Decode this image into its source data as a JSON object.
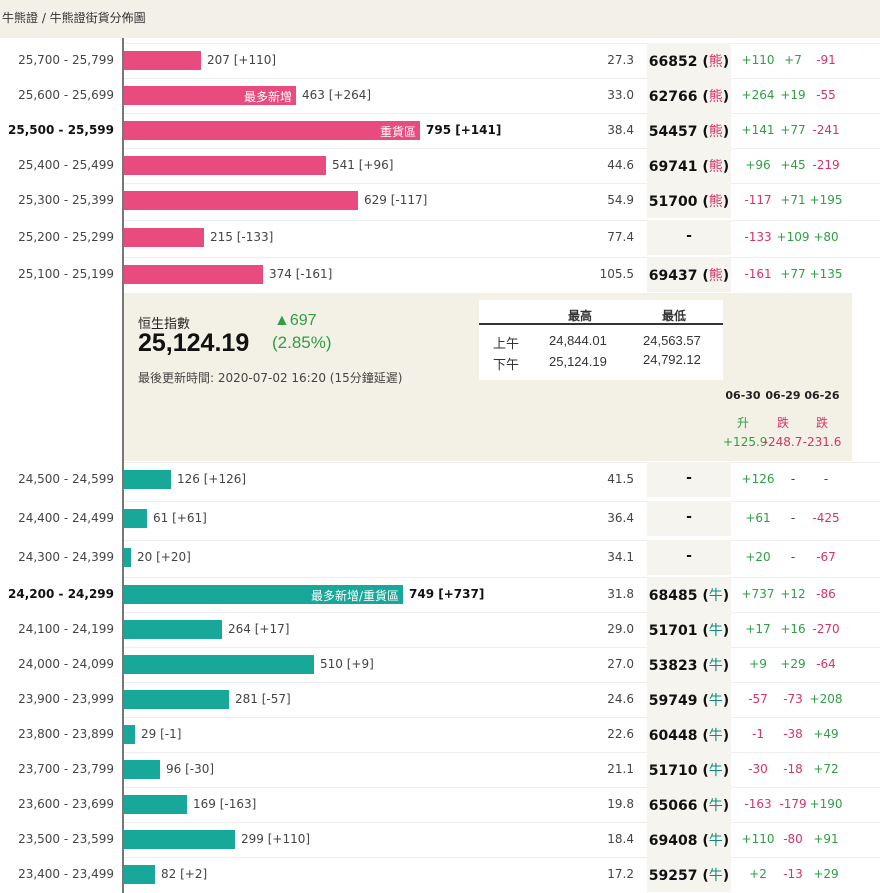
{
  "breadcrumb": "牛熊證 / 牛熊證街貨分佈圖",
  "colors": {
    "bear": "#e94b7e",
    "bull": "#17a89a",
    "up": "#2f9e44",
    "down": "#d6336c",
    "panel": "#f3f0e5"
  },
  "bear_rows": [
    {
      "range": "25,700 - 25,799",
      "bold": false,
      "qty": "207",
      "delta": "[+110]",
      "tag": "",
      "pct": "27.3",
      "code": "66852",
      "kind": "熊",
      "c1": "+110",
      "c2": "+7",
      "c3": "-91"
    },
    {
      "range": "25,600 - 25,699",
      "bold": false,
      "qty": "463",
      "delta": "[+264]",
      "tag": "最多新增",
      "pct": "33.0",
      "code": "62766",
      "kind": "熊",
      "c1": "+264",
      "c2": "+19",
      "c3": "-55"
    },
    {
      "range": "25,500 - 25,599",
      "bold": true,
      "qty": "795",
      "delta": "[+141]",
      "tag": "重貨區",
      "pct": "38.4",
      "code": "54457",
      "kind": "熊",
      "c1": "+141",
      "c2": "+77",
      "c3": "-241"
    },
    {
      "range": "25,400 - 25,499",
      "bold": false,
      "qty": "541",
      "delta": "[+96]",
      "tag": "",
      "pct": "44.6",
      "code": "69741",
      "kind": "熊",
      "c1": "+96",
      "c2": "+45",
      "c3": "-219"
    },
    {
      "range": "25,300 - 25,399",
      "bold": false,
      "qty": "629",
      "delta": "[-117]",
      "tag": "",
      "pct": "54.9",
      "code": "51700",
      "kind": "熊",
      "c1": "-117",
      "c2": "+71",
      "c3": "+195"
    },
    {
      "range": "25,200 - 25,299",
      "bold": false,
      "qty": "215",
      "delta": "[-133]",
      "tag": "",
      "pct": "77.4",
      "code": "-",
      "kind": "",
      "c1": "-133",
      "c2": "+109",
      "c3": "+80"
    },
    {
      "range": "25,100 - 25,199",
      "bold": false,
      "qty": "374",
      "delta": "[-161]",
      "tag": "",
      "pct": "105.5",
      "code": "69437",
      "kind": "熊",
      "c1": "-161",
      "c2": "+77",
      "c3": "+135"
    }
  ],
  "index": {
    "title": "恒生指數",
    "value": "25,124.19",
    "change": "▲697",
    "change_pct": "(2.85%)",
    "updated": "最後更新時間: 2020-07-02 16:20 (15分鐘延遲)",
    "high_label": "最高",
    "low_label": "最低",
    "am_label": "上午",
    "pm_label": "下午",
    "am_high": "24,844.01",
    "am_low": "24,563.57",
    "pm_high": "25,124.19",
    "pm_low": "24,792.12"
  },
  "daily": [
    {
      "date": "06-30",
      "word": "升",
      "value": "+125.9"
    },
    {
      "date": "06-29",
      "word": "跌",
      "value": "-248.7"
    },
    {
      "date": "06-26",
      "word": "跌",
      "value": "-231.6"
    }
  ],
  "bull_rows": [
    {
      "range": "24,500 - 24,599",
      "bold": false,
      "qty": "126",
      "delta": "[+126]",
      "tag": "",
      "pct": "41.5",
      "code": "-",
      "kind": "",
      "c1": "+126",
      "c2": "-",
      "c3": "-"
    },
    {
      "range": "24,400 - 24,499",
      "bold": false,
      "qty": "61",
      "delta": "[+61]",
      "tag": "",
      "pct": "36.4",
      "code": "-",
      "kind": "",
      "c1": "+61",
      "c2": "-",
      "c3": "-425"
    },
    {
      "range": "24,300 - 24,399",
      "bold": false,
      "qty": "20",
      "delta": "[+20]",
      "tag": "",
      "pct": "34.1",
      "code": "-",
      "kind": "",
      "c1": "+20",
      "c2": "-",
      "c3": "-67"
    },
    {
      "range": "24,200 - 24,299",
      "bold": true,
      "qty": "749",
      "delta": "[+737]",
      "tag": "最多新增/重貨區",
      "pct": "31.8",
      "code": "68485",
      "kind": "牛",
      "c1": "+737",
      "c2": "+12",
      "c3": "-86"
    },
    {
      "range": "24,100 - 24,199",
      "bold": false,
      "qty": "264",
      "delta": "[+17]",
      "tag": "",
      "pct": "29.0",
      "code": "51701",
      "kind": "牛",
      "c1": "+17",
      "c2": "+16",
      "c3": "-270"
    },
    {
      "range": "24,000 - 24,099",
      "bold": false,
      "qty": "510",
      "delta": "[+9]",
      "tag": "",
      "pct": "27.0",
      "code": "53823",
      "kind": "牛",
      "c1": "+9",
      "c2": "+29",
      "c3": "-64"
    },
    {
      "range": "23,900 - 23,999",
      "bold": false,
      "qty": "281",
      "delta": "[-57]",
      "tag": "",
      "pct": "24.6",
      "code": "59749",
      "kind": "牛",
      "c1": "-57",
      "c2": "-73",
      "c3": "+208"
    },
    {
      "range": "23,800 - 23,899",
      "bold": false,
      "qty": "29",
      "delta": "[-1]",
      "tag": "",
      "pct": "22.6",
      "code": "60448",
      "kind": "牛",
      "c1": "-1",
      "c2": "-38",
      "c3": "+49"
    },
    {
      "range": "23,700 - 23,799",
      "bold": false,
      "qty": "96",
      "delta": "[-30]",
      "tag": "",
      "pct": "21.1",
      "code": "51710",
      "kind": "牛",
      "c1": "-30",
      "c2": "-18",
      "c3": "+72"
    },
    {
      "range": "23,600 - 23,699",
      "bold": false,
      "qty": "169",
      "delta": "[-163]",
      "tag": "",
      "pct": "19.8",
      "code": "65066",
      "kind": "牛",
      "c1": "-163",
      "c2": "-179",
      "c3": "+190"
    },
    {
      "range": "23,500 - 23,599",
      "bold": false,
      "qty": "299",
      "delta": "[+110]",
      "tag": "",
      "pct": "18.4",
      "code": "69408",
      "kind": "牛",
      "c1": "+110",
      "c2": "-80",
      "c3": "+91"
    },
    {
      "range": "23,400 - 23,499",
      "bold": false,
      "qty": "82",
      "delta": "[+2]",
      "tag": "",
      "pct": "17.2",
      "code": "59257",
      "kind": "牛",
      "c1": "+2",
      "c2": "-13",
      "c3": "+29"
    }
  ]
}
